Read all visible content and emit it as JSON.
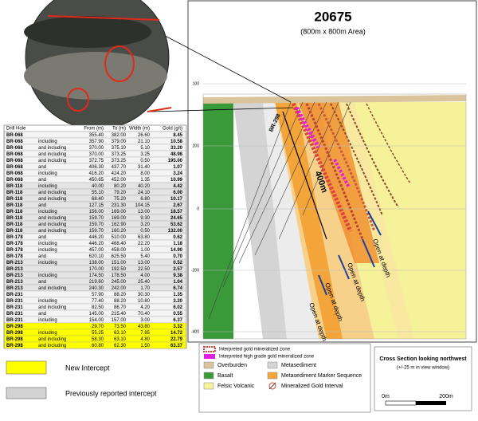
{
  "table": {
    "columns": [
      "Drill Hole",
      "",
      "From (m)",
      "To (m)",
      "Width (m)",
      "Gold (g/t)"
    ],
    "rows": [
      [
        "BR-068",
        "",
        "355.40",
        "382.00",
        "26.60",
        "8.45"
      ],
      [
        "BR-068",
        "including",
        "357.90",
        "379.00",
        "21.10",
        "10.58"
      ],
      [
        "BR-068",
        "and including",
        "370.00",
        "375.10",
        "5.10",
        "33.20"
      ],
      [
        "BR-068",
        "and including",
        "370.00",
        "373.25",
        "3.25",
        "48.98"
      ],
      [
        "BR-068",
        "and including",
        "372.75",
        "373.25",
        "0.50",
        "195.00"
      ],
      [
        "BR-068",
        "and",
        "406.30",
        "437.70",
        "31.40",
        "1.07"
      ],
      [
        "BR-068",
        "including",
        "416.20",
        "424.20",
        "8.00",
        "3.24"
      ],
      [
        "BR-068",
        "and",
        "450.65",
        "452.00",
        "1.35",
        "10.99"
      ],
      [
        "BR-118",
        "including",
        "40.00",
        "80.20",
        "40.20",
        "4.42"
      ],
      [
        "BR-118",
        "and including",
        "55.10",
        "79.20",
        "24.10",
        "6.00"
      ],
      [
        "BR-118",
        "and including",
        "68.40",
        "75.20",
        "6.80",
        "10.17"
      ],
      [
        "BR-118",
        "and",
        "127.15",
        "231.30",
        "104.15",
        "2.67"
      ],
      [
        "BR-118",
        "including",
        "156.00",
        "169.00",
        "13.00",
        "18.57"
      ],
      [
        "BR-118",
        "and including",
        "159.70",
        "169.00",
        "9.30",
        "24.65"
      ],
      [
        "BR-118",
        "and including",
        "159.70",
        "162.90",
        "3.20",
        "53.62"
      ],
      [
        "BR-118",
        "and including",
        "159.70",
        "160.20",
        "0.50",
        "132.00"
      ],
      [
        "BR-178",
        "and",
        "446.20",
        "510.00",
        "63.80",
        "0.62"
      ],
      [
        "BR-178",
        "including",
        "446.20",
        "468.40",
        "22.20",
        "1.18"
      ],
      [
        "BR-178",
        "including",
        "457.00",
        "458.00",
        "1.00",
        "14.90"
      ],
      [
        "BR-178",
        "and",
        "620.10",
        "625.50",
        "5.40",
        "0.70"
      ],
      [
        "BR-213",
        "including",
        "138.00",
        "151.00",
        "13.00",
        "0.52"
      ],
      [
        "BR-213",
        "",
        "170.00",
        "192.50",
        "22.50",
        "2.57"
      ],
      [
        "BR-213",
        "including",
        "174.50",
        "178.50",
        "4.00",
        "9.38"
      ],
      [
        "BR-213",
        "and",
        "219.60",
        "245.00",
        "25.40",
        "1.04"
      ],
      [
        "BR-213",
        "and including",
        "240.30",
        "242.00",
        "1.70",
        "6.74"
      ],
      [
        "BR-231",
        "",
        "57.90",
        "88.20",
        "30.30",
        "1.35"
      ],
      [
        "BR-231",
        "including",
        "77.40",
        "88.20",
        "10.80",
        "3.20"
      ],
      [
        "BR-231",
        "and including",
        "82.50",
        "86.70",
        "4.20",
        "6.02"
      ],
      [
        "BR-231",
        "and",
        "145.00",
        "215.40",
        "70.40",
        "0.55"
      ],
      [
        "BR-231",
        "including",
        "154.00",
        "157.00",
        "3.00",
        "6.37"
      ],
      [
        "BR-298",
        "",
        "29.70",
        "73.50",
        "43.80",
        "3.32"
      ],
      [
        "BR-298",
        "including",
        "55.25",
        "63.10",
        "7.85",
        "14.72"
      ],
      [
        "BR-298",
        "and including",
        "58.30",
        "63.10",
        "4.80",
        "22.79"
      ],
      [
        "BR-298",
        "and including",
        "60.80",
        "62.30",
        "1.50",
        "63.37"
      ]
    ]
  },
  "intercept_legend": {
    "new": "New Intercept",
    "previous": "Previously reported  intercept"
  },
  "section": {
    "title": "20675",
    "subtitle": "(800m x 800m Area)",
    "elevations": [
      "100",
      "200",
      "0",
      "-200",
      "-400"
    ],
    "hole_label": "BR-298",
    "length_label": "400m",
    "notes": [
      "Open at depth",
      "Open at depth",
      "Open at depth",
      "Open at depth"
    ]
  },
  "legend": {
    "zone": "Interpreted gold mineralized zone",
    "high_grade": "Interpreted high grade gold mineralized zone",
    "overburden": "Overburden",
    "metasediment": "Metasediment",
    "basalt": "Basalt",
    "marker": "Metasediment Marker Sequence",
    "felsic": "Felsic Volcanic",
    "interval": "Mineralized Gold Interval"
  },
  "scale": {
    "title": "Cross Section looking northwest",
    "window": "(+/-25 m in view window)",
    "start": "0m",
    "end": "200m"
  }
}
